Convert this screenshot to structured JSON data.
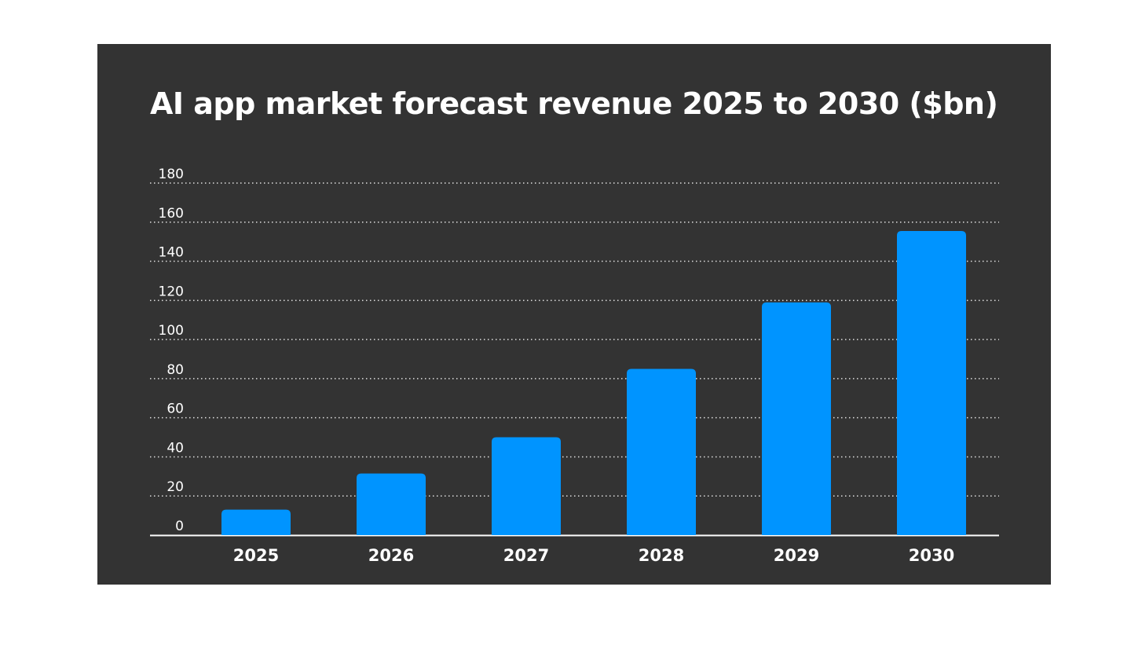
{
  "chart_data": {
    "type": "bar",
    "title": "AI app market forecast revenue 2025 to 2030 ($bn)",
    "categories": [
      "2025",
      "2026",
      "2027",
      "2028",
      "2029",
      "2030"
    ],
    "values": [
      13,
      31.5,
      50,
      85,
      119,
      155.5
    ],
    "ylim": [
      0,
      180
    ],
    "yticks": [
      0,
      20,
      40,
      60,
      80,
      100,
      120,
      140,
      160,
      180
    ],
    "xlabel": "",
    "ylabel": "",
    "grid": "horizontal dotted",
    "colors": {
      "bar": "#0094FF",
      "background": "#333333",
      "text": "#FFFFFF"
    }
  }
}
